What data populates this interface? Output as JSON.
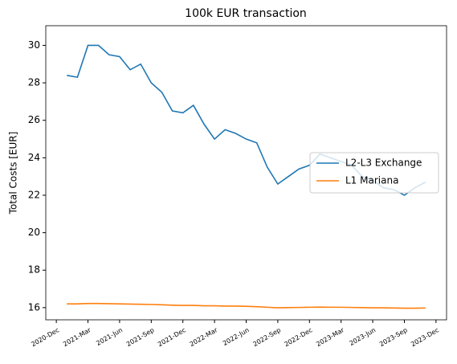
{
  "chart_data": {
    "type": "line",
    "title": "100k EUR transaction",
    "ylabel": "Total Costs [EUR]",
    "x": [
      "2021-01",
      "2021-02",
      "2021-03",
      "2021-04",
      "2021-05",
      "2021-06",
      "2021-07",
      "2021-08",
      "2021-09",
      "2021-10",
      "2021-11",
      "2021-12",
      "2022-01",
      "2022-02",
      "2022-03",
      "2022-04",
      "2022-05",
      "2022-06",
      "2022-07",
      "2022-08",
      "2022-09",
      "2022-10",
      "2022-11",
      "2022-12",
      "2023-01",
      "2023-02",
      "2023-03",
      "2023-04",
      "2023-05",
      "2023-06",
      "2023-07",
      "2023-08",
      "2023-09",
      "2023-10",
      "2023-11"
    ],
    "series": [
      {
        "name": "L2-L3 Exchange",
        "color": "#1f77b4",
        "values": [
          28.4,
          28.3,
          30.0,
          30.0,
          29.5,
          29.4,
          28.7,
          29.0,
          28.0,
          27.5,
          26.5,
          26.4,
          26.8,
          25.8,
          25.0,
          25.5,
          25.3,
          25.0,
          24.8,
          23.5,
          22.6,
          23.0,
          23.4,
          23.6,
          24.2,
          24.0,
          23.8,
          23.6,
          23.0,
          22.8,
          22.4,
          22.3,
          22.0,
          22.4,
          22.7
        ]
      },
      {
        "name": "L1 Mariana",
        "color": "#ff7f0e",
        "values": [
          16.2,
          16.2,
          16.22,
          16.22,
          16.21,
          16.2,
          16.19,
          16.18,
          16.17,
          16.15,
          16.13,
          16.12,
          16.12,
          16.1,
          16.1,
          16.08,
          16.08,
          16.07,
          16.05,
          16.02,
          15.99,
          16.0,
          16.01,
          16.02,
          16.03,
          16.02,
          16.02,
          16.01,
          16.0,
          15.99,
          15.99,
          15.98,
          15.97,
          15.97,
          15.98
        ]
      }
    ],
    "xlim": [
      "2020-11",
      "2024-01"
    ],
    "xticks": [
      {
        "value": "2020-12",
        "label": "2020-Dec"
      },
      {
        "value": "2021-03",
        "label": "2021-Mar"
      },
      {
        "value": "2021-06",
        "label": "2021-Jun"
      },
      {
        "value": "2021-09",
        "label": "2021-Sep"
      },
      {
        "value": "2021-12",
        "label": "2021-Dec"
      },
      {
        "value": "2022-03",
        "label": "2022-Mar"
      },
      {
        "value": "2022-06",
        "label": "2022-Jun"
      },
      {
        "value": "2022-09",
        "label": "2022-Sep"
      },
      {
        "value": "2022-12",
        "label": "2022-Dec"
      },
      {
        "value": "2023-03",
        "label": "2023-Mar"
      },
      {
        "value": "2023-06",
        "label": "2023-Jun"
      },
      {
        "value": "2023-09",
        "label": "2023-Sep"
      },
      {
        "value": "2023-12",
        "label": "2023-Dec"
      }
    ],
    "ylim": [
      15.35,
      31.05
    ],
    "yticks": [
      16,
      18,
      20,
      22,
      24,
      26,
      28,
      30
    ],
    "legend": "center right"
  }
}
